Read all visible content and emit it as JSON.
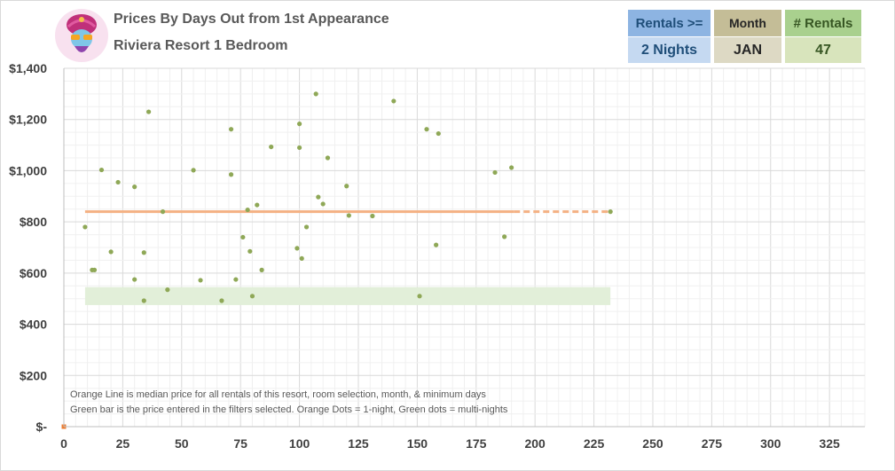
{
  "header": {
    "title_line1": "Prices By Days Out from 1st Appearance",
    "title_line2": "Riviera Resort 1 Bedroom"
  },
  "filters": {
    "rentals_min": {
      "label": "Rentals >=",
      "value": "2 Nights",
      "label_bg": "#8db4e2",
      "value_bg": "#c5d9f1",
      "text_color": "#1f4e79"
    },
    "month": {
      "label": "Month",
      "value": "JAN",
      "label_bg": "#c4bd97",
      "value_bg": "#ddd9c4",
      "text_color": "#262626"
    },
    "rental_count": {
      "label": "# Rentals",
      "value": "47",
      "label_bg": "#a9d08e",
      "value_bg": "#d8e4bc",
      "text_color": "#375623"
    }
  },
  "notes": {
    "line1": "Orange Line is median price for all rentals of this resort, room selection, month, & minimum days",
    "line2": "Green bar is the price entered in the filters selected. Orange Dots = 1-night, Green dots = multi-nights"
  },
  "colors": {
    "dot": "#8fa857",
    "median_line": "#f4b183",
    "price_band": "#e2efd9",
    "grid_major": "#d9d9d9",
    "grid_minor": "#f0f0f0",
    "one_night_dot": "#ed7d31"
  },
  "chart_data": {
    "type": "scatter",
    "title": "Prices By Days Out from 1st Appearance",
    "xlim": [
      0,
      340
    ],
    "ylim": [
      0,
      1400
    ],
    "x_ticks": [
      0,
      25,
      50,
      75,
      100,
      125,
      150,
      175,
      200,
      225,
      250,
      275,
      300,
      325
    ],
    "y_ticks": [
      0,
      200,
      400,
      600,
      800,
      1000,
      1200,
      1400
    ],
    "y_tick_labels": [
      "$-",
      "$200",
      "$400",
      "$600",
      "$800",
      "$1,000",
      "$1,200",
      "$1,400"
    ],
    "grid": true,
    "median_line": {
      "y": 840,
      "x_start": 9,
      "x_solid_end": 191,
      "x_end": 232
    },
    "price_band": {
      "y_low": 475,
      "y_high": 545,
      "x_start": 9,
      "x_end": 232
    },
    "series": [
      {
        "points": [
          [
            9,
            780
          ],
          [
            12,
            612
          ],
          [
            13,
            612
          ],
          [
            16,
            1003
          ],
          [
            20,
            683
          ],
          [
            23,
            955
          ],
          [
            30,
            937
          ],
          [
            30,
            575
          ],
          [
            34,
            680
          ],
          [
            34,
            492
          ],
          [
            36,
            1230
          ],
          [
            42,
            840
          ],
          [
            44,
            535
          ],
          [
            55,
            1002
          ],
          [
            58,
            572
          ],
          [
            67,
            492
          ],
          [
            71,
            985
          ],
          [
            71,
            1162
          ],
          [
            73,
            575
          ],
          [
            76,
            740
          ],
          [
            78,
            847
          ],
          [
            79,
            685
          ],
          [
            80,
            510
          ],
          [
            82,
            866
          ],
          [
            84,
            612
          ],
          [
            88,
            1093
          ],
          [
            99,
            697
          ],
          [
            100,
            1090
          ],
          [
            100,
            1183
          ],
          [
            101,
            657
          ],
          [
            103,
            780
          ],
          [
            107,
            1300
          ],
          [
            108,
            897
          ],
          [
            110,
            870
          ],
          [
            112,
            1050
          ],
          [
            120,
            940
          ],
          [
            121,
            825
          ],
          [
            131,
            823
          ],
          [
            140,
            1272
          ],
          [
            151,
            510
          ],
          [
            154,
            1162
          ],
          [
            158,
            710
          ],
          [
            159,
            1145
          ],
          [
            183,
            993
          ],
          [
            187,
            742
          ],
          [
            190,
            1012
          ],
          [
            232,
            840
          ]
        ]
      },
      {
        "points": [
          [
            0,
            0
          ]
        ]
      }
    ]
  }
}
